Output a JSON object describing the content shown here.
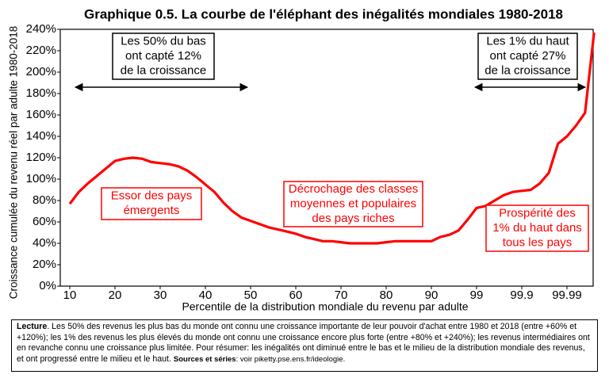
{
  "chart_data": {
    "type": "line",
    "title": "Graphique 0.5. La courbe de l'éléphant des inégalités mondiales 1980-2018",
    "y_label": "Croissance cumulée du revenu réel par adulte 1980-2018",
    "x_label": "Percentile de la distribution mondiale du revenu par adulte",
    "categories": [
      "10",
      null,
      null,
      null,
      null,
      "20",
      null,
      null,
      null,
      null,
      "30",
      null,
      null,
      null,
      null,
      "40",
      null,
      null,
      null,
      null,
      "50",
      null,
      null,
      null,
      null,
      "60",
      null,
      null,
      null,
      null,
      "70",
      null,
      null,
      null,
      null,
      "80",
      null,
      null,
      null,
      null,
      "90",
      null,
      null,
      null,
      null,
      "99",
      null,
      null,
      null,
      null,
      "99.9",
      null,
      null,
      null,
      null,
      "99.99",
      null,
      null,
      null
    ],
    "values": [
      77,
      88,
      96,
      103,
      110,
      117,
      119,
      120,
      119,
      116,
      115,
      114,
      112,
      108,
      102,
      95,
      88,
      78,
      70,
      64,
      61,
      58,
      55,
      53,
      51,
      49,
      46,
      44,
      42,
      42,
      41,
      40,
      40,
      40,
      40,
      41,
      42,
      42,
      42,
      42,
      42,
      46,
      48,
      52,
      62,
      73,
      75,
      80,
      85,
      88,
      89,
      90,
      96,
      106,
      133,
      140,
      150,
      162,
      237
    ],
    "color": "#ff0000",
    "ylim": [
      0,
      240
    ],
    "yticks": [
      {
        "value": 0,
        "label": "0%"
      },
      {
        "value": 20,
        "label": "20%"
      },
      {
        "value": 40,
        "label": "40%"
      },
      {
        "value": 60,
        "label": "60%"
      },
      {
        "value": 80,
        "label": "80%"
      },
      {
        "value": 100,
        "label": "100%"
      },
      {
        "value": 120,
        "label": "120%"
      },
      {
        "value": 140,
        "label": "140%"
      },
      {
        "value": 160,
        "label": "160%"
      },
      {
        "value": 180,
        "label": "180%"
      },
      {
        "value": 200,
        "label": "200%"
      },
      {
        "value": 220,
        "label": "220%"
      },
      {
        "value": 240,
        "label": "240%"
      }
    ],
    "grid": false,
    "annotations": [
      {
        "lines": [
          "Les 50% du bas",
          "ont capté 12%",
          "de la croissance"
        ],
        "color": "#000000"
      },
      {
        "lines": [
          "Les 1% du haut",
          "ont capté 27%",
          "de la croissance"
        ],
        "color": "#000000"
      },
      {
        "lines": [
          "Essor des pays",
          "émergents"
        ],
        "color": "#ff0000"
      },
      {
        "lines": [
          "Décrochage des classes",
          "moyennes et populaires",
          "des pays riches"
        ],
        "color": "#ff0000"
      },
      {
        "lines": [
          "Prospérité des",
          "1% du haut dans",
          "tous les pays"
        ],
        "color": "#ff0000"
      }
    ]
  },
  "note": {
    "lead": "Lecture",
    "text": ". Les 50% des revenus les plus bas du monde ont connu une croissance importante de leur pouvoir d'achat entre 1980 et 2018 (entre +60% et +120%); les 1% des revenus les plus élevés du monde ont connu une croissance encore plus forte (entre +80% et +240%); les revenus intermédiaires ont en revanche connu une croissance plus limitée. Pour résumer: les inégalités ont diminué entre le bas et le milieu de la distribution mondiale des revenus, et ont progressé entre le milieu et le haut. ",
    "sources_label": "Sources et séries",
    "sources": ": voir piketty.pse.ens.fr/ideologie."
  }
}
